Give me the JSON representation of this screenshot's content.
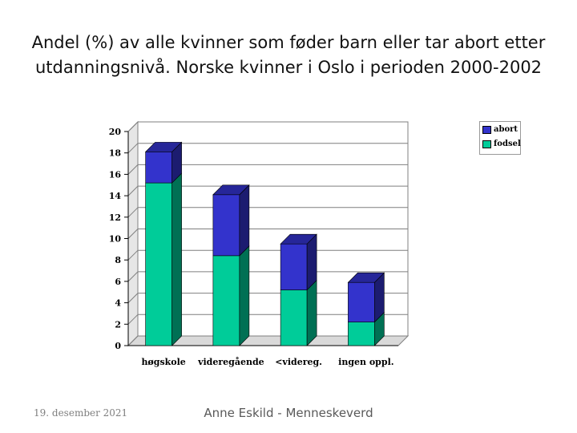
{
  "title": {
    "line1": "Andel (%) av alle kvinner som føder barn eller tar abort etter",
    "line2": "utdanningsnivå. Norske kvinner i Oslo i perioden 2000-2002"
  },
  "footer": {
    "date": "19. desember 2021",
    "author": "Anne Eskild - Menneskeverd"
  },
  "colors": {
    "abort": "#3333cc",
    "fodsel": "#00cc99"
  },
  "chart_data": {
    "type": "bar",
    "stacked": true,
    "categories": [
      "høgskole",
      "videregående",
      "<videreg.",
      "ingen oppl."
    ],
    "series": [
      {
        "name": "fodsel",
        "values": [
          15.2,
          8.4,
          5.2,
          2.2
        ]
      },
      {
        "name": "abort",
        "values": [
          2.9,
          5.7,
          4.3,
          3.7
        ]
      }
    ],
    "yticks": [
      "0",
      "2",
      "4",
      "6",
      "8",
      "10",
      "12",
      "14",
      "16",
      "18",
      "20"
    ],
    "ylim": [
      0,
      20
    ],
    "legend_position": "top-right",
    "grid": true
  }
}
